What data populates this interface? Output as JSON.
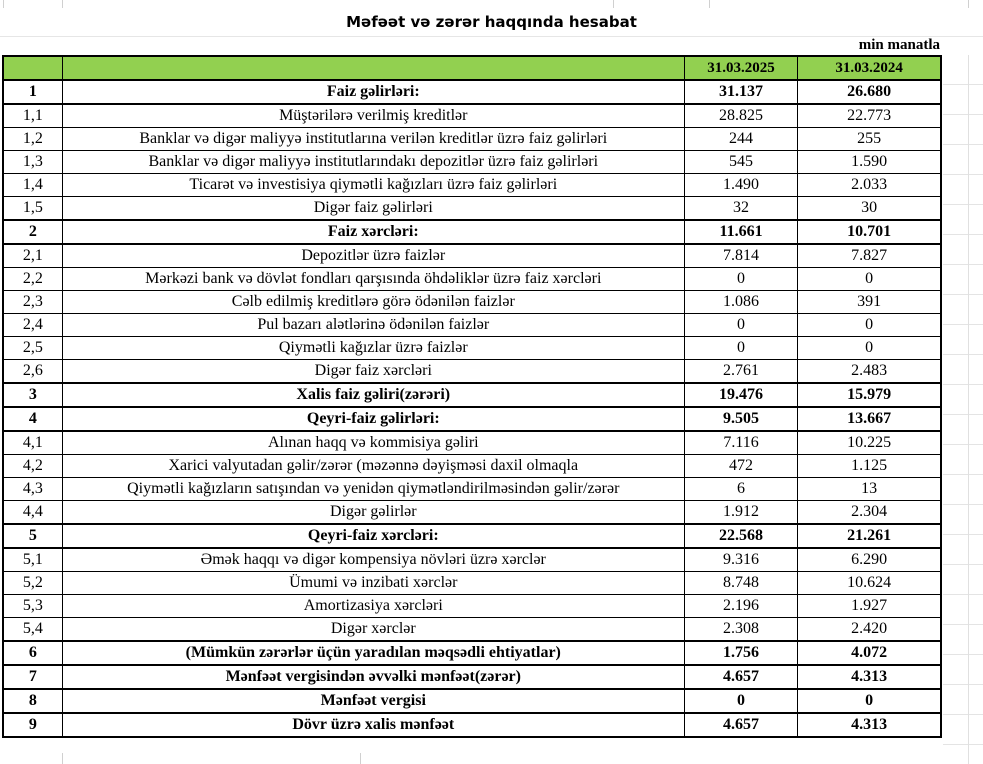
{
  "sheet": {
    "title": "Məfəət və zərər haqqında hesabat",
    "unit_label": "min manatla",
    "columns": [
      "31.03.2025",
      "31.03.2024"
    ],
    "rows": [
      {
        "num": "1",
        "label": "Faiz gəlirləri:",
        "v1": "31.137",
        "v2": "26.680",
        "section": true
      },
      {
        "num": "1,1",
        "label": "Müştərilərə verilmiş kreditlər",
        "v1": "28.825",
        "v2": "22.773",
        "section": false
      },
      {
        "num": "1,2",
        "label": "Banklar və digər maliyyə institutlarına verilən kreditlər üzrə faiz gəlirləri",
        "v1": "244",
        "v2": "255",
        "section": false
      },
      {
        "num": "1,3",
        "label": "Banklar və digər maliyyə institutlarındakı depozitlər üzrə faiz gəlirləri",
        "v1": "545",
        "v2": "1.590",
        "section": false
      },
      {
        "num": "1,4",
        "label": "Ticarət və investisiya qiymətli kağızları üzrə faiz gəlirləri",
        "v1": "1.490",
        "v2": "2.033",
        "section": false
      },
      {
        "num": "1,5",
        "label": "Digər faiz gəlirləri",
        "v1": "32",
        "v2": "30",
        "section": false
      },
      {
        "num": "2",
        "label": "Faiz xərcləri:",
        "v1": "11.661",
        "v2": "10.701",
        "section": true
      },
      {
        "num": "2,1",
        "label": "Depozitlər üzrə faizlər",
        "v1": "7.814",
        "v2": "7.827",
        "section": false
      },
      {
        "num": "2,2",
        "label": "Mərkəzi bank və dövlət fondları qarşısında öhdəliklər üzrə faiz xərcləri",
        "v1": "0",
        "v2": "0",
        "section": false
      },
      {
        "num": "2,3",
        "label": "Cəlb edilmiş kreditlərə görə ödənilən faizlər",
        "v1": "1.086",
        "v2": "391",
        "section": false
      },
      {
        "num": "2,4",
        "label": "Pul bazarı alətlərinə ödənilən faizlər",
        "v1": "0",
        "v2": "0",
        "section": false
      },
      {
        "num": "2,5",
        "label": "Qiymətli kağızlar üzrə faizlər",
        "v1": "0",
        "v2": "0",
        "section": false
      },
      {
        "num": "2,6",
        "label": "Digər faiz xərcləri",
        "v1": "2.761",
        "v2": "2.483",
        "section": false
      },
      {
        "num": "3",
        "label": "Xalis faiz gəliri(zərəri)",
        "v1": "19.476",
        "v2": "15.979",
        "section": true
      },
      {
        "num": "4",
        "label": "Qeyri-faiz gəlirləri:",
        "v1": "9.505",
        "v2": "13.667",
        "section": true
      },
      {
        "num": "4,1",
        "label": "Alınan haqq və kommisiya gəliri",
        "v1": "7.116",
        "v2": "10.225",
        "section": false
      },
      {
        "num": "4,2",
        "label": "Xarici valyutadan gəlir/zərər (məzənnə dəyişməsi daxil olmaqla",
        "v1": "472",
        "v2": "1.125",
        "section": false
      },
      {
        "num": "4,3",
        "label": "Qiymətli kağızların satışından və yenidən qiymətləndirilməsindən gəlir/zərər",
        "v1": "6",
        "v2": "13",
        "section": false
      },
      {
        "num": "4,4",
        "label": "Digər gəlirlər",
        "v1": "1.912",
        "v2": "2.304",
        "section": false
      },
      {
        "num": "5",
        "label": "Qeyri-faiz xərcləri:",
        "v1": "22.568",
        "v2": "21.261",
        "section": true
      },
      {
        "num": "5,1",
        "label": "Əmək haqqı və digər kompensiya növləri üzrə xərclər",
        "v1": "9.316",
        "v2": "6.290",
        "section": false
      },
      {
        "num": "5,2",
        "label": "Ümumi və inzibati xərclər",
        "v1": "8.748",
        "v2": "10.624",
        "section": false
      },
      {
        "num": "5,3",
        "label": "Amortizasiya xərcləri",
        "v1": "2.196",
        "v2": "1.927",
        "section": false
      },
      {
        "num": "5,4",
        "label": "Digər xərclər",
        "v1": "2.308",
        "v2": "2.420",
        "section": false
      },
      {
        "num": "6",
        "label": "(Mümkün zərərlər üçün yaradılan məqsədli ehtiyatlar)",
        "v1": "1.756",
        "v2": "4.072",
        "section": true
      },
      {
        "num": "7",
        "label": "Mənfəət vergisindən əvvəlki mənfəət(zərər)",
        "v1": "4.657",
        "v2": "4.313",
        "section": true
      },
      {
        "num": "8",
        "label": "Mənfəət vergisi",
        "v1": "0",
        "v2": "0",
        "section": true
      },
      {
        "num": "9",
        "label": "Dövr üzrə xalis mənfəət",
        "v1": "4.657",
        "v2": "4.313",
        "section": true
      }
    ]
  },
  "colors": {
    "header_green": "#92D050",
    "table_border": "#000000",
    "gridline": "#D9D9D9"
  }
}
